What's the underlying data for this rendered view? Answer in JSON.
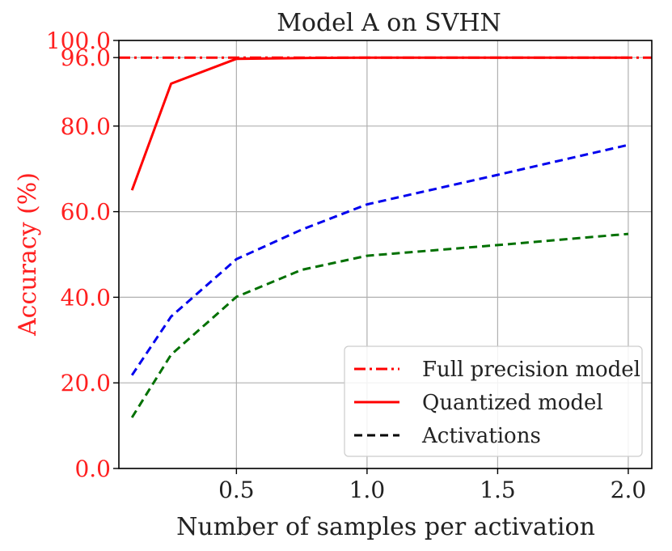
{
  "chart_data": {
    "type": "line",
    "title": "Model A on SVHN",
    "xlabel": "Number of samples per activation",
    "ylabel": "Accuracy (%)",
    "xlim": [
      0.05,
      2.09
    ],
    "ylim": [
      0,
      100
    ],
    "x_ticks": [
      0.5,
      1.0,
      1.5,
      2.0
    ],
    "x_tick_labels": [
      "0.5",
      "1.0",
      "1.5",
      "2.0"
    ],
    "y_ticks": [
      0,
      20,
      40,
      60,
      80,
      96,
      100
    ],
    "y_tick_labels": [
      "0.0",
      "20.0",
      "40.0",
      "60.0",
      "80.0",
      "96.0",
      "100.0"
    ],
    "grid": true,
    "legend_position": "lower-right",
    "full_precision_value": 96.0,
    "series": [
      {
        "name": "Full precision model",
        "style": "dashdot",
        "color": "#ff0000",
        "x": [
          0.05,
          2.09
        ],
        "y": [
          96.0,
          96.0
        ]
      },
      {
        "name": "Quantized model",
        "style": "solid",
        "color": "#ff0000",
        "x": [
          0.1,
          0.25,
          0.5,
          0.75,
          1.0,
          2.0
        ],
        "y": [
          65.0,
          89.9,
          95.7,
          95.9,
          96.0,
          96.0
        ]
      },
      {
        "name": "Activations",
        "style": "dashed",
        "color": "#0000ee",
        "in_legend": false,
        "x": [
          0.1,
          0.25,
          0.5,
          0.75,
          1.0,
          1.5,
          2.0
        ],
        "y": [
          21.8,
          35.5,
          48.9,
          55.8,
          61.7,
          68.6,
          75.6
        ]
      },
      {
        "name": "Activations",
        "style": "dashed",
        "color": "#007000",
        "in_legend": false,
        "x": [
          0.1,
          0.25,
          0.5,
          0.75,
          1.0,
          1.5,
          2.0
        ],
        "y": [
          11.9,
          26.6,
          40.1,
          46.4,
          49.7,
          52.2,
          54.8
        ]
      }
    ],
    "legend": [
      {
        "label": "Full precision model",
        "style": "dashdot",
        "color": "#ff0000"
      },
      {
        "label": "Quantized model",
        "style": "solid",
        "color": "#ff0000"
      },
      {
        "label": "Activations",
        "style": "dashed",
        "color": "#000000"
      }
    ]
  }
}
